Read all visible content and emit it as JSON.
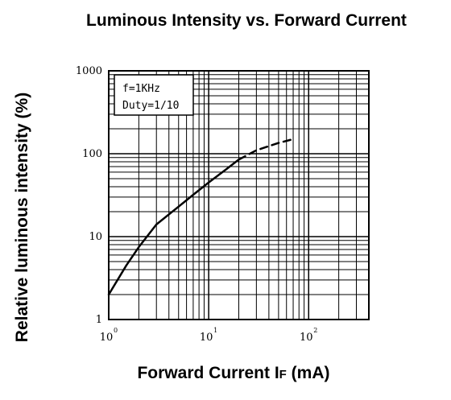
{
  "chart_data": {
    "type": "line",
    "title": "Luminous Intensity vs. Forward Current",
    "xlabel_main": "Forward Current I",
    "xlabel_sub": "F",
    "xlabel_unit": " (mA)",
    "ylabel": "Relative luminous intensity (%)",
    "x_scale": "log",
    "y_scale": "log",
    "xlim": [
      1,
      400
    ],
    "ylim": [
      1,
      1000
    ],
    "grid": true,
    "x_ticks": [
      {
        "base": "10",
        "exp": "0",
        "value": 1
      },
      {
        "base": "10",
        "exp": "1",
        "value": 10
      },
      {
        "base": "10",
        "exp": "2",
        "value": 100
      }
    ],
    "y_ticks": [
      {
        "label": "1",
        "value": 1
      },
      {
        "label": "10",
        "value": 10
      },
      {
        "label": "100",
        "value": 100
      },
      {
        "label": "1000",
        "value": 1000
      }
    ],
    "annotations": [
      "f=1KHz",
      "Duty=1/10"
    ],
    "series": [
      {
        "style": "solid",
        "x": [
          1,
          1.5,
          2,
          3,
          5,
          7,
          10,
          15,
          20
        ],
        "y": [
          2,
          4.5,
          7.5,
          14,
          23,
          32,
          45,
          65,
          85
        ]
      },
      {
        "style": "dashed",
        "x": [
          20,
          30,
          50,
          70
        ],
        "y": [
          85,
          110,
          135,
          150
        ]
      }
    ]
  }
}
